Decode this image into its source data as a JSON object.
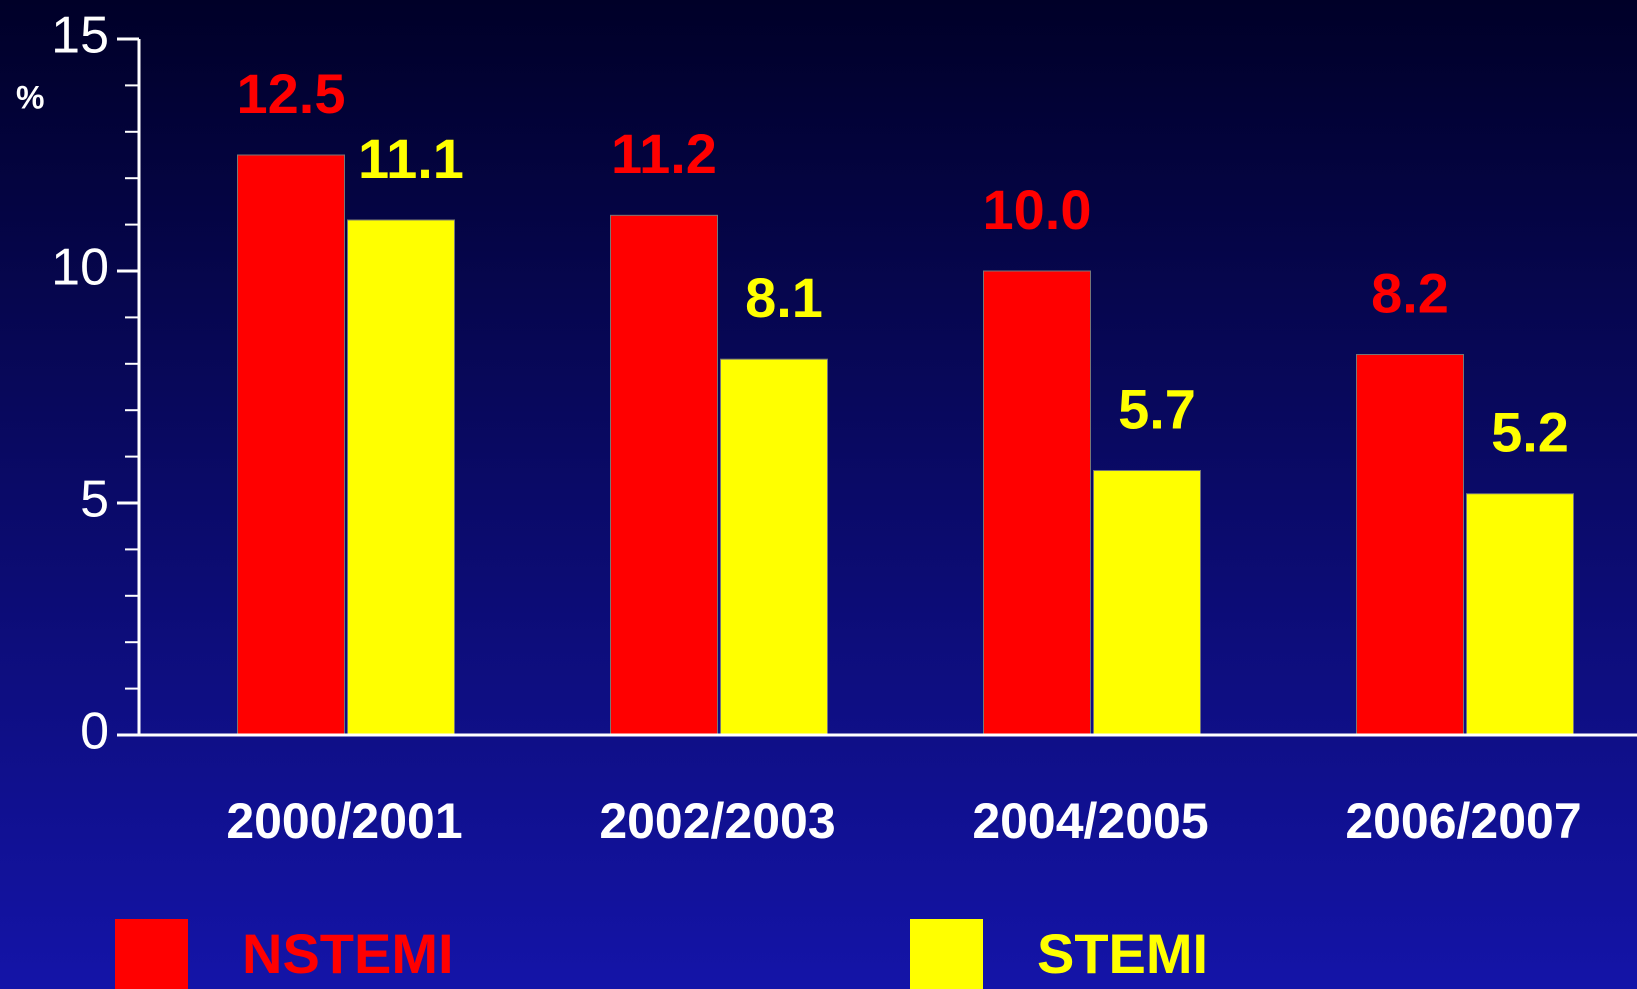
{
  "chart_data": {
    "type": "bar",
    "y_label": "%",
    "categories": [
      "2000/2001",
      "2002/2003",
      "2004/2005",
      "2006/2007"
    ],
    "series": [
      {
        "name": "NSTEMI",
        "color": "#ff0000",
        "values": [
          12.5,
          11.2,
          10.0,
          8.2
        ],
        "value_labels": [
          "12.5",
          "11.2",
          "10.0",
          "8.2"
        ]
      },
      {
        "name": "STEMI",
        "color": "#ffff00",
        "values": [
          11.1,
          8.1,
          5.7,
          5.2
        ],
        "value_labels": [
          "11.1",
          "8.1",
          "5.7",
          "5.2"
        ]
      }
    ],
    "ylim": [
      0,
      15
    ],
    "yticks": [
      0,
      5,
      10,
      15
    ],
    "yticks_minor": [
      1,
      2,
      3,
      4,
      6,
      7,
      8,
      9,
      11,
      12,
      13,
      14
    ]
  }
}
